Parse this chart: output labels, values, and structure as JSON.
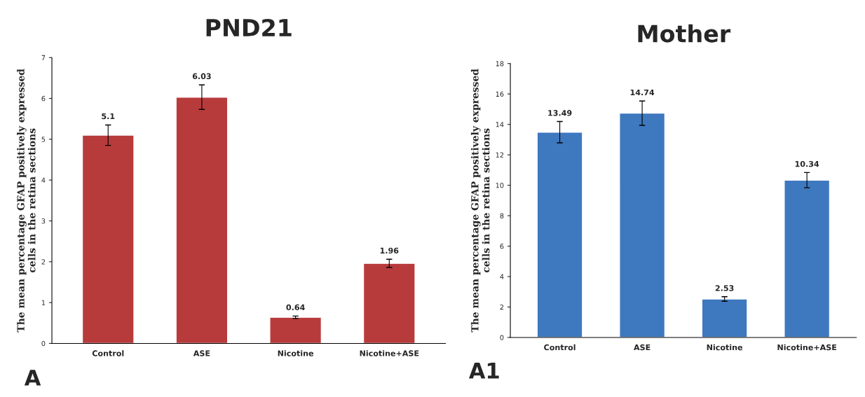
{
  "chart_data": [
    {
      "type": "bar",
      "title": "PND21",
      "ylabel": "The mean percentage GFAP positively expressed\ncells in the retina sections",
      "categories": [
        "Control",
        "ASE",
        "Nicotine",
        "Nicotine+ASE"
      ],
      "values": [
        5.1,
        6.03,
        0.64,
        1.96
      ],
      "errors": [
        0.25,
        0.3,
        0.03,
        0.1
      ],
      "color": "#b83b3b",
      "ylim": [
        0,
        7
      ],
      "yticks": [
        0,
        1,
        2,
        3,
        4,
        5,
        6,
        7
      ],
      "data_labels": true,
      "grid": false,
      "annotations": [
        "A"
      ]
    },
    {
      "type": "bar",
      "title": "Mother",
      "ylabel": "The mean percentage GFAP positively expressed\ncells in the retina sections",
      "categories": [
        "Control",
        "ASE",
        "Nicotine",
        "Nicotine+ASE"
      ],
      "values": [
        13.49,
        14.74,
        2.53,
        10.34
      ],
      "errors": [
        0.7,
        0.8,
        0.15,
        0.5
      ],
      "color": "#3e78bf",
      "ylim": [
        0,
        18
      ],
      "yticks": [
        0,
        2,
        4,
        6,
        8,
        10,
        12,
        14,
        16,
        18
      ],
      "data_labels": true,
      "grid": false,
      "annotations": [
        "A1"
      ]
    }
  ]
}
